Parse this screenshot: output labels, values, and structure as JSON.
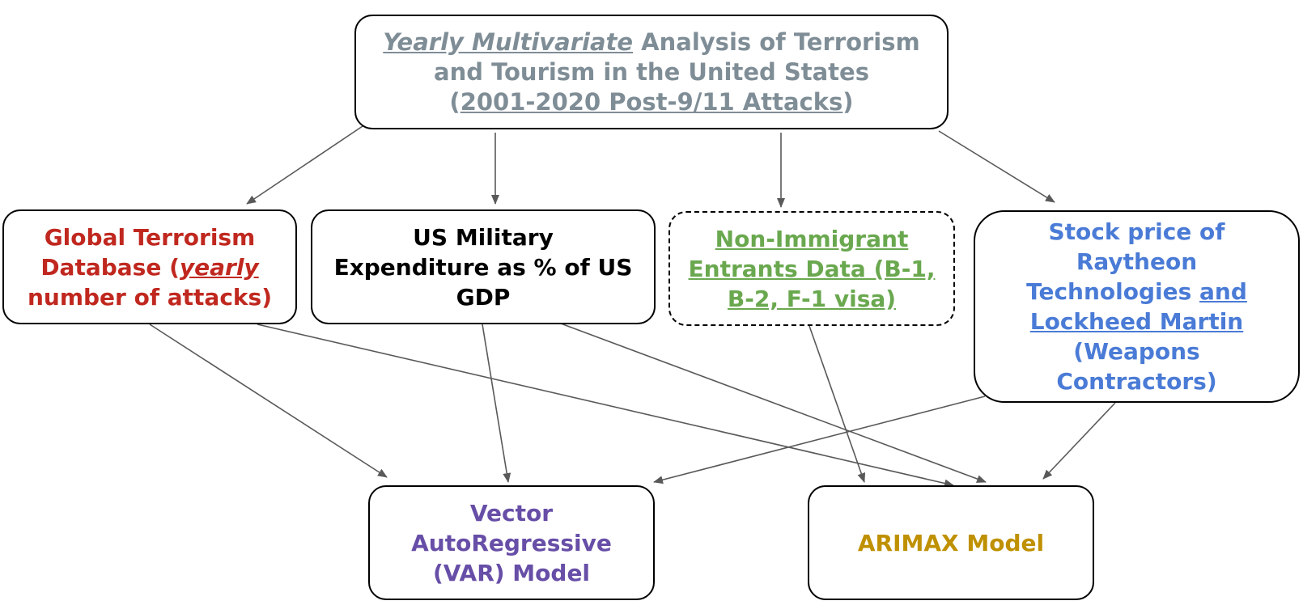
{
  "nodes": {
    "top": {
      "line1_italic": "Yearly Multivariate",
      "line1_rest": " Analysis of Terrorism",
      "line2": "and Tourism in the United States",
      "line3_open": "(",
      "line3_underlined": "2001-2020 Post-9/11 Attacks",
      "line3_close": ")"
    },
    "gtd": {
      "line1": "Global Terrorism",
      "line2_a": "Database (",
      "line2_italic": "yearly",
      "line3": "number of attacks)"
    },
    "military": {
      "line1": "US Military",
      "line2": "Expenditure as % of US",
      "line3": "GDP"
    },
    "nonimmigrant": {
      "line1": "Non-Immigrant",
      "line2": "Entrants Data (B-1,",
      "line3": "B-2, F-1 visa)"
    },
    "stock": {
      "line1": "Stock price of",
      "line2": "Raytheon",
      "line3_a": "Technologies ",
      "line3_underlined": "and",
      "line4_underlined": "Lockheed Martin",
      "line5": "(Weapons",
      "line6": "Contractors)"
    },
    "var": {
      "line1": "Vector",
      "line2": "AutoRegressive",
      "line3": "(VAR) Model"
    },
    "arimax": {
      "line1": "ARIMAX Model"
    }
  },
  "colors": {
    "top": "#7f8d96",
    "gtd": "#c0281f",
    "military": "#000000",
    "nonimmigrant": "#6aa84f",
    "stock": "#4a7bd6",
    "var": "#674ea7",
    "arimax": "#bf9000",
    "edge": "#595959"
  },
  "edges": [
    {
      "from": "top",
      "to": "gtd"
    },
    {
      "from": "top",
      "to": "military"
    },
    {
      "from": "top",
      "to": "nonimmigrant"
    },
    {
      "from": "top",
      "to": "stock"
    },
    {
      "from": "gtd",
      "to": "var"
    },
    {
      "from": "gtd",
      "to": "arimax"
    },
    {
      "from": "military",
      "to": "var"
    },
    {
      "from": "military",
      "to": "arimax"
    },
    {
      "from": "nonimmigrant",
      "to": "arimax"
    },
    {
      "from": "stock",
      "to": "var"
    },
    {
      "from": "stock",
      "to": "arimax"
    }
  ]
}
